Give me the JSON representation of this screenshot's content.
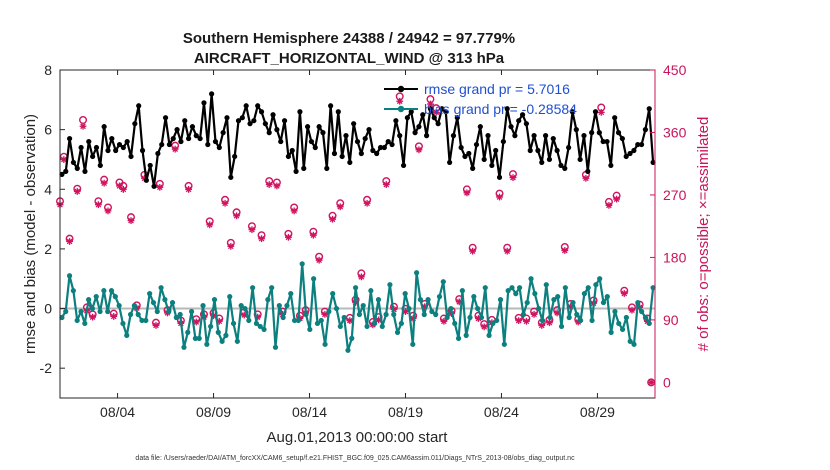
{
  "chart_data": {
    "type": "line",
    "title_line1": "Southern Hemisphere 24388 / 24942 = 97.779%",
    "title_line2": "AIRCRAFT_HORIZONTAL_WIND @ 313 hPa",
    "xlabel": "Aug.01,2013 00:00:00 start",
    "ylabel": "rmse and bias (model - observation)",
    "ylabel_right": "# of obs: o=possible; ×=assimilated",
    "xlim": [
      1.0,
      32.0
    ],
    "ylim": [
      -3,
      8
    ],
    "ylim_right": [
      -22.5,
      450
    ],
    "x_ticks": [
      4,
      9,
      14,
      19,
      24,
      29
    ],
    "x_tick_labels": [
      "08/04",
      "08/09",
      "08/14",
      "08/19",
      "08/24",
      "08/29"
    ],
    "y_ticks": [
      -2,
      0,
      2,
      4,
      6,
      8
    ],
    "y_tick_labels": [
      "-2",
      "0",
      "2",
      "4",
      "6",
      "8"
    ],
    "y_ticks_right": [
      0,
      90,
      180,
      270,
      360,
      450
    ],
    "y_tick_labels_right": [
      "0",
      "90",
      "180",
      "270",
      "360",
      "450"
    ],
    "zero_line": 0,
    "series": [
      {
        "name": "rmse grand pr = 5.7016",
        "color": "#000000",
        "values": [
          4.5,
          4.6,
          5.7,
          4.9,
          4.7,
          5.4,
          4.6,
          5.6,
          5.1,
          5.4,
          4.8,
          6.1,
          5.3,
          5.7,
          5.3,
          5.5,
          5.4,
          5.6,
          5.1,
          6.2,
          6.8,
          5.3,
          4.3,
          4.8,
          4.1,
          5.2,
          5.5,
          6.4,
          5.5,
          5.7,
          6.0,
          5.6,
          6.3,
          5.7,
          6.1,
          5.8,
          5.7,
          6.9,
          5.5,
          7.2,
          5.6,
          5.4,
          5.9,
          6.4,
          4.4,
          5.1,
          6.3,
          6.4,
          6.8,
          6.2,
          6.3,
          6.8,
          6.6,
          6.2,
          5.9,
          6.5,
          6.0,
          5.6,
          6.3,
          5.1,
          5.3,
          4.6,
          6.6,
          4.7,
          6.1,
          5.6,
          5.4,
          6.1,
          5.9,
          4.7,
          6.8,
          5.2,
          6.6,
          5.1,
          5.8,
          4.9,
          6.2,
          5.6,
          5.2,
          5.7,
          6.0,
          5.3,
          5.2,
          5.4,
          5.4,
          5.6,
          5.5,
          6.3,
          5.8,
          4.8,
          6.4,
          6.6,
          5.9,
          6.1,
          6.5,
          5.8,
          6.7,
          6.4,
          6.2,
          6.7,
          6.6,
          4.9,
          5.8,
          6.4,
          5.4,
          5.1,
          5.2,
          4.7,
          5.5,
          6.1,
          5.0,
          5.8,
          4.8,
          5.3,
          4.4,
          5.6,
          6.7,
          6.1,
          5.8,
          6.3,
          6.5,
          6.2,
          5.3,
          5.8,
          5.3,
          4.9,
          5.8,
          5.0,
          5.7,
          5.3,
          4.8,
          4.7,
          5.4,
          6.6,
          6.0,
          5.0,
          5.8,
          4.6,
          5.9,
          6.6,
          5.9,
          5.6,
          5.6,
          4.8,
          6.4,
          5.9,
          5.7,
          5.1,
          5.2,
          5.3,
          5.5,
          5.5,
          6.0,
          6.7,
          4.9
        ]
      },
      {
        "name": "bias grand pr = -0.28584",
        "color": "#0c7f7f",
        "values": [
          -0.3,
          -0.1,
          1.1,
          0.6,
          -0.4,
          -0.1,
          -0.5,
          0.3,
          0.0,
          0.4,
          -0.1,
          0.6,
          -0.1,
          0.6,
          0.4,
          0.1,
          -0.5,
          -0.9,
          -0.2,
          0.1,
          -0.2,
          -0.4,
          -0.4,
          0.5,
          0.2,
          -0.1,
          0.7,
          0.3,
          -0.1,
          0.2,
          -0.3,
          -0.2,
          -1.3,
          -0.8,
          -0.1,
          -1.0,
          -1.0,
          0.1,
          -1.2,
          -0.6,
          0.3,
          -0.8,
          -1.1,
          -0.9,
          0.4,
          -0.5,
          -1.1,
          0.1,
          0.0,
          -0.4,
          0.7,
          -0.5,
          -0.6,
          -0.7,
          0.3,
          0.7,
          -1.3,
          0.1,
          -0.3,
          0.1,
          0.5,
          -0.4,
          -0.4,
          1.5,
          -0.2,
          -0.7,
          1.0,
          -0.5,
          -0.4,
          -1.2,
          -0.1,
          0.5,
          0.0,
          -0.6,
          -0.3,
          -1.4,
          -1.0,
          0.7,
          -0.2,
          0.1,
          -0.6,
          0.6,
          -0.5,
          0.3,
          -0.6,
          -0.2,
          0.8,
          -0.2,
          -0.8,
          -0.5,
          0.5,
          0.0,
          -1.2,
          1.2,
          0.3,
          -0.2,
          0.3,
          -0.1,
          -0.2,
          0.4,
          0.9,
          -0.3,
          0.0,
          -0.5,
          -1.0,
          0.6,
          -0.9,
          -0.3,
          0.4,
          0.0,
          -0.3,
          0.7,
          -0.9,
          -0.5,
          -0.4,
          0.3,
          -1.2,
          0.6,
          0.7,
          0.5,
          0.7,
          -0.2,
          0.2,
          1.0,
          0.5,
          0.0,
          -0.4,
          0.8,
          -0.3,
          0.3,
          0.4,
          -0.6,
          0.7,
          -0.3,
          0.2,
          -0.2,
          -0.4,
          0.5,
          0.7,
          -0.4,
          0.8,
          1.0,
          0.2,
          0.4,
          -0.8,
          -0.1,
          -0.5,
          -0.7,
          -0.3,
          -1.1,
          -1.2,
          0.2,
          -0.1,
          -0.3,
          -0.5,
          0.7
        ]
      }
    ],
    "obs_possible": [
      [
        1.0,
        261
      ],
      [
        1.2,
        325
      ],
      [
        1.5,
        207
      ],
      [
        1.9,
        279
      ],
      [
        2.2,
        378
      ],
      [
        2.4,
        108
      ],
      [
        2.7,
        98
      ],
      [
        3.0,
        261
      ],
      [
        3.3,
        292
      ],
      [
        3.5,
        252
      ],
      [
        3.8,
        99
      ],
      [
        4.1,
        288
      ],
      [
        4.3,
        283
      ],
      [
        4.7,
        238
      ],
      [
        5.0,
        111
      ],
      [
        5.4,
        299
      ],
      [
        6.0,
        86
      ],
      [
        6.2,
        286
      ],
      [
        6.6,
        104
      ],
      [
        7.0,
        341
      ],
      [
        7.3,
        89
      ],
      [
        7.7,
        283
      ],
      [
        8.1,
        91
      ],
      [
        8.5,
        98
      ],
      [
        8.8,
        232
      ],
      [
        9.0,
        100
      ],
      [
        9.3,
        92
      ],
      [
        9.6,
        263
      ],
      [
        9.9,
        201
      ],
      [
        10.2,
        245
      ],
      [
        10.6,
        101
      ],
      [
        11.0,
        225
      ],
      [
        11.3,
        98
      ],
      [
        11.5,
        212
      ],
      [
        11.9,
        290
      ],
      [
        12.3,
        288
      ],
      [
        12.6,
        102
      ],
      [
        12.9,
        214
      ],
      [
        13.2,
        252
      ],
      [
        13.5,
        96
      ],
      [
        13.8,
        104
      ],
      [
        14.2,
        217
      ],
      [
        14.5,
        181
      ],
      [
        14.8,
        102
      ],
      [
        15.2,
        240
      ],
      [
        15.6,
        258
      ],
      [
        16.1,
        93
      ],
      [
        16.4,
        119
      ],
      [
        16.7,
        157
      ],
      [
        17.0,
        263
      ],
      [
        17.3,
        87
      ],
      [
        17.6,
        94
      ],
      [
        18.0,
        290
      ],
      [
        18.4,
        109
      ],
      [
        18.7,
        412
      ],
      [
        19.0,
        106
      ],
      [
        19.4,
        96
      ],
      [
        19.7,
        340
      ],
      [
        20.0,
        113
      ],
      [
        20.3,
        408
      ],
      [
        20.6,
        395
      ],
      [
        21.0,
        92
      ],
      [
        21.4,
        103
      ],
      [
        21.8,
        120
      ],
      [
        22.2,
        278
      ],
      [
        22.5,
        194
      ],
      [
        22.8,
        96
      ],
      [
        23.1,
        84
      ],
      [
        23.5,
        90
      ],
      [
        23.9,
        272
      ],
      [
        24.3,
        194
      ],
      [
        24.6,
        300
      ],
      [
        24.9,
        93
      ],
      [
        25.3,
        92
      ],
      [
        25.7,
        102
      ],
      [
        26.1,
        86
      ],
      [
        26.5,
        90
      ],
      [
        26.9,
        104
      ],
      [
        27.3,
        195
      ],
      [
        27.6,
        113
      ],
      [
        28.0,
        91
      ],
      [
        28.4,
        299
      ],
      [
        28.8,
        118
      ],
      [
        29.2,
        396
      ],
      [
        29.6,
        260
      ],
      [
        30.0,
        269
      ],
      [
        30.4,
        132
      ],
      [
        30.8,
        108
      ],
      [
        31.2,
        112
      ],
      [
        31.6,
        92
      ],
      [
        31.8,
        0
      ]
    ],
    "obs_assimilated": [
      [
        1.0,
        256
      ],
      [
        1.2,
        321
      ],
      [
        1.5,
        203
      ],
      [
        1.9,
        275
      ],
      [
        2.2,
        369
      ],
      [
        2.4,
        103
      ],
      [
        2.7,
        94
      ],
      [
        3.0,
        256
      ],
      [
        3.3,
        287
      ],
      [
        3.5,
        247
      ],
      [
        3.8,
        95
      ],
      [
        4.1,
        283
      ],
      [
        4.3,
        278
      ],
      [
        4.7,
        233
      ],
      [
        5.0,
        107
      ],
      [
        5.4,
        294
      ],
      [
        6.0,
        82
      ],
      [
        6.2,
        281
      ],
      [
        6.6,
        100
      ],
      [
        7.0,
        336
      ],
      [
        7.3,
        85
      ],
      [
        7.7,
        278
      ],
      [
        8.1,
        87
      ],
      [
        8.5,
        94
      ],
      [
        8.8,
        227
      ],
      [
        9.0,
        96
      ],
      [
        9.3,
        88
      ],
      [
        9.6,
        258
      ],
      [
        9.9,
        196
      ],
      [
        10.2,
        240
      ],
      [
        10.6,
        97
      ],
      [
        11.0,
        220
      ],
      [
        11.3,
        94
      ],
      [
        11.5,
        207
      ],
      [
        11.9,
        285
      ],
      [
        12.3,
        283
      ],
      [
        12.6,
        98
      ],
      [
        12.9,
        209
      ],
      [
        13.2,
        247
      ],
      [
        13.5,
        92
      ],
      [
        13.8,
        100
      ],
      [
        14.2,
        212
      ],
      [
        14.5,
        176
      ],
      [
        14.8,
        98
      ],
      [
        15.2,
        235
      ],
      [
        15.6,
        253
      ],
      [
        16.1,
        89
      ],
      [
        16.4,
        115
      ],
      [
        16.7,
        152
      ],
      [
        17.0,
        258
      ],
      [
        17.3,
        83
      ],
      [
        17.6,
        90
      ],
      [
        18.0,
        285
      ],
      [
        18.4,
        105
      ],
      [
        18.7,
        405
      ],
      [
        19.0,
        102
      ],
      [
        19.4,
        92
      ],
      [
        19.7,
        335
      ],
      [
        20.0,
        109
      ],
      [
        20.3,
        401
      ],
      [
        20.6,
        389
      ],
      [
        21.0,
        88
      ],
      [
        21.4,
        99
      ],
      [
        21.8,
        116
      ],
      [
        22.2,
        273
      ],
      [
        22.5,
        189
      ],
      [
        22.8,
        92
      ],
      [
        23.1,
        80
      ],
      [
        23.5,
        86
      ],
      [
        23.9,
        267
      ],
      [
        24.3,
        189
      ],
      [
        24.6,
        295
      ],
      [
        24.9,
        89
      ],
      [
        25.3,
        88
      ],
      [
        25.7,
        98
      ],
      [
        26.1,
        82
      ],
      [
        26.5,
        86
      ],
      [
        26.9,
        100
      ],
      [
        27.3,
        190
      ],
      [
        27.6,
        109
      ],
      [
        28.0,
        87
      ],
      [
        28.4,
        294
      ],
      [
        28.8,
        114
      ],
      [
        29.2,
        389
      ],
      [
        29.6,
        255
      ],
      [
        30.0,
        264
      ],
      [
        30.4,
        128
      ],
      [
        30.8,
        104
      ],
      [
        31.2,
        108
      ],
      [
        31.6,
        88
      ],
      [
        31.8,
        0
      ]
    ],
    "footer_text": "data file: /Users/raeder/DAI/ATM_forcXX/CAM6_setup/f.e21.FHIST_BGC.f09_025.CAM6assim.011/Diags_NTrS_2013-08/obs_diag_output.nc"
  }
}
